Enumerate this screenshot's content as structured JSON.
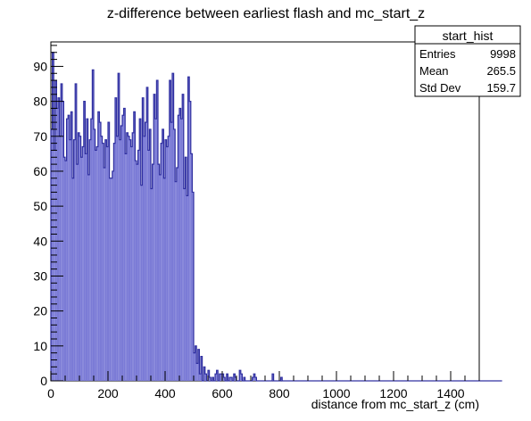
{
  "chart_data": {
    "type": "histogram",
    "title": "z-difference between earliest flash and mc_start_z",
    "xlabel": "distance from mc_start_z (cm)",
    "ylabel": "",
    "xlim": [
      0,
      1500
    ],
    "ylim": [
      0,
      97
    ],
    "xticks": [
      0,
      200,
      400,
      600,
      800,
      1000,
      1200,
      1400
    ],
    "yticks": [
      0,
      10,
      20,
      30,
      40,
      50,
      60,
      70,
      80,
      90
    ],
    "bin_width": 5,
    "line_color": "#3030a0",
    "fill_color": "#7b7bd6",
    "series": [
      {
        "x_start": 0,
        "values": [
          72,
          94,
          66,
          86,
          78,
          81,
          70,
          85,
          80,
          64,
          63,
          75,
          76,
          69,
          77,
          58,
          69,
          85,
          62,
          71,
          70,
          64,
          67,
          80,
          65,
          75,
          59,
          69,
          75,
          89,
          72,
          66,
          67,
          77,
          74,
          70,
          68,
          61,
          69,
          67,
          74,
          58,
          58,
          60,
          68,
          81,
          70,
          88,
          69,
          73,
          76,
          78,
          65,
          71,
          70,
          69,
          67,
          71,
          77,
          63,
          62,
          66,
          75,
          56,
          81,
          70,
          74,
          84,
          66,
          72,
          55,
          62,
          82,
          75,
          86,
          62,
          59,
          68,
          72,
          58,
          69,
          67,
          70,
          86,
          74,
          88,
          72,
          57,
          61,
          76,
          78,
          75,
          82,
          55,
          64,
          53,
          87,
          80,
          65,
          54,
          8,
          10,
          5,
          9,
          2,
          7,
          0,
          4,
          2,
          0,
          3,
          1,
          0,
          1,
          0,
          2,
          3,
          0,
          2,
          2,
          2,
          1,
          0,
          2,
          0,
          1,
          1,
          0,
          2,
          1,
          0,
          0,
          3,
          2,
          0,
          1,
          0,
          0,
          0,
          0,
          0,
          1,
          2,
          1,
          0,
          0,
          0,
          0,
          0,
          0,
          0,
          0,
          0,
          0,
          0,
          2,
          0,
          0,
          0,
          0,
          0,
          1,
          0,
          0,
          0,
          0,
          0,
          0,
          0,
          0,
          0,
          0,
          0,
          0,
          0,
          0,
          0,
          0,
          0,
          0,
          0,
          0,
          0,
          0,
          0,
          0,
          0,
          0,
          0,
          0,
          0,
          0,
          0,
          0,
          0,
          0,
          0,
          0,
          0,
          0,
          0,
          0,
          0,
          0,
          0,
          0,
          0,
          0,
          0,
          0,
          0,
          0,
          0,
          0,
          0,
          0,
          0,
          0,
          0,
          0,
          0,
          0,
          0,
          0,
          0,
          0,
          0,
          0,
          0,
          0,
          0,
          0,
          0,
          0,
          0,
          0,
          0,
          0,
          0,
          0,
          0,
          0,
          0,
          0,
          0,
          0,
          0,
          0,
          0,
          0,
          0,
          0,
          0,
          0,
          0,
          0,
          0,
          0,
          0,
          0,
          0,
          0,
          0,
          0,
          0,
          0,
          0,
          0,
          0,
          0,
          0,
          0,
          0,
          0,
          0,
          0,
          0,
          0,
          0,
          0,
          0,
          0,
          0,
          0,
          0,
          0,
          0,
          0,
          0,
          0,
          0,
          0,
          0,
          0,
          0,
          0,
          0,
          0,
          0,
          0,
          0,
          0,
          0,
          0,
          0,
          0,
          0,
          0,
          0,
          0,
          0,
          0,
          0,
          0,
          0,
          0
        ]
      }
    ],
    "stats_box": {
      "title": "start_hist",
      "rows": [
        {
          "label": "Entries",
          "value": "9998"
        },
        {
          "label": "Mean",
          "value": "265.5"
        },
        {
          "label": "Std Dev",
          "value": "159.7"
        }
      ]
    }
  }
}
